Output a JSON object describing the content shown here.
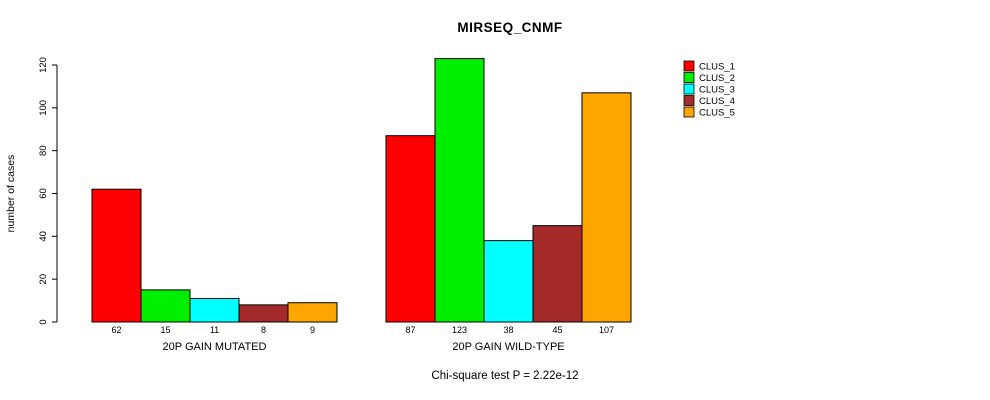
{
  "title": "MIRSEQ_CNMF",
  "caption": "Chi-square test P = 2.22e-12",
  "chart_data": {
    "type": "bar",
    "title": "MIRSEQ_CNMF",
    "xlabel": "",
    "ylabel": "number of cases",
    "ylim": [
      0,
      120
    ],
    "yticks": [
      0,
      20,
      40,
      60,
      80,
      100,
      120
    ],
    "grid": false,
    "legend_position": "top-right",
    "value_labels": true,
    "categories": [
      "20P GAIN MUTATED",
      "20P GAIN WILD-TYPE"
    ],
    "series": [
      {
        "name": "CLUS_1",
        "color": "#FF0000",
        "values": [
          62,
          87
        ]
      },
      {
        "name": "CLUS_2",
        "color": "#00EE00",
        "values": [
          15,
          123
        ]
      },
      {
        "name": "CLUS_3",
        "color": "#00FFFF",
        "values": [
          11,
          38
        ]
      },
      {
        "name": "CLUS_4",
        "color": "#A52A2A",
        "values": [
          8,
          45
        ]
      },
      {
        "name": "CLUS_5",
        "color": "#FFA500",
        "values": [
          9,
          107
        ]
      }
    ]
  }
}
